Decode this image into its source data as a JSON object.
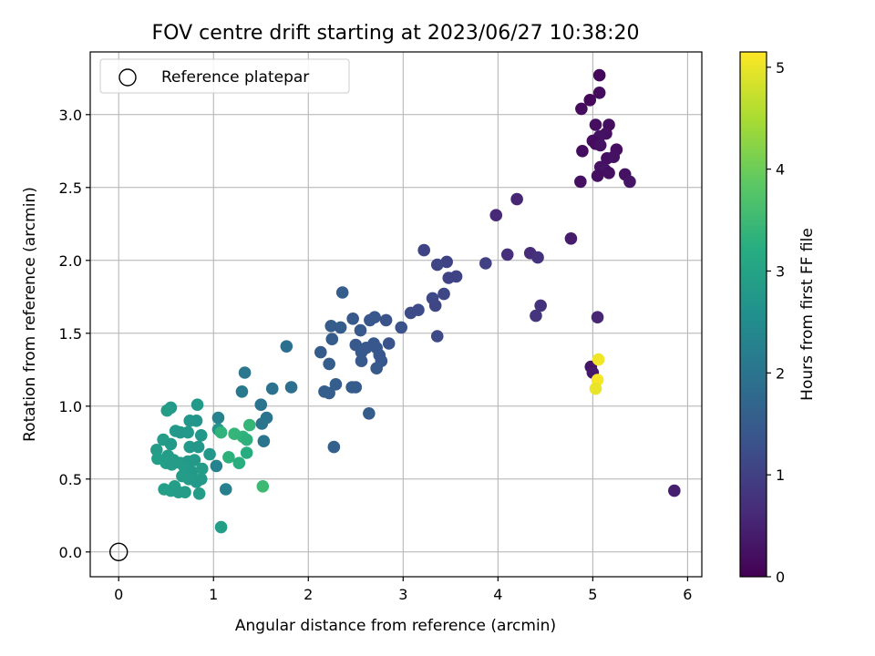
{
  "chart_data": {
    "type": "scatter",
    "title": "FOV centre drift starting at 2023/06/27 10:38:20",
    "xlabel": "Angular distance from reference (arcmin)",
    "ylabel": "Rotation from reference (arcmin)",
    "xlim": [
      -0.3,
      6.15
    ],
    "ylim": [
      -0.17,
      3.43
    ],
    "xticks": [
      0,
      1,
      2,
      3,
      4,
      5,
      6
    ],
    "yticks": [
      0.0,
      0.5,
      1.0,
      1.5,
      2.0,
      2.5,
      3.0
    ],
    "xtick_labels": [
      "0",
      "1",
      "2",
      "3",
      "4",
      "5",
      "6"
    ],
    "ytick_labels": [
      "0.0",
      "0.5",
      "1.0",
      "1.5",
      "2.0",
      "2.5",
      "3.0"
    ],
    "grid": true,
    "legend": {
      "placement": "top-left",
      "entries": [
        {
          "label": "Reference platepar",
          "marker": "open-circle"
        }
      ]
    },
    "reference_point": {
      "x": 0,
      "y": 0
    },
    "colorbar": {
      "label": "Hours from first FF file",
      "range": [
        0,
        5.15
      ],
      "ticks": [
        0,
        1,
        2,
        3,
        4,
        5
      ],
      "tick_labels": [
        "0",
        "1",
        "2",
        "3",
        "4",
        "5"
      ],
      "colormap": "viridis"
    },
    "series": [
      {
        "points": [
          {
            "x": 5.07,
            "y": 3.27,
            "c": 0.1
          },
          {
            "x": 5.07,
            "y": 3.15,
            "c": 0.15
          },
          {
            "x": 4.97,
            "y": 3.1,
            "c": 0.12
          },
          {
            "x": 4.88,
            "y": 3.04,
            "c": 0.15
          },
          {
            "x": 5.03,
            "y": 2.93,
            "c": 0.2
          },
          {
            "x": 5.17,
            "y": 2.93,
            "c": 0.18
          },
          {
            "x": 5.14,
            "y": 2.87,
            "c": 0.22
          },
          {
            "x": 5.07,
            "y": 2.85,
            "c": 0.25
          },
          {
            "x": 5.0,
            "y": 2.82,
            "c": 0.2
          },
          {
            "x": 5.03,
            "y": 2.8,
            "c": 0.15
          },
          {
            "x": 5.08,
            "y": 2.79,
            "c": 0.25
          },
          {
            "x": 4.89,
            "y": 2.75,
            "c": 0.18
          },
          {
            "x": 5.25,
            "y": 2.76,
            "c": 0.2
          },
          {
            "x": 5.15,
            "y": 2.7,
            "c": 0.22
          },
          {
            "x": 5.22,
            "y": 2.71,
            "c": 0.25
          },
          {
            "x": 5.08,
            "y": 2.64,
            "c": 0.25
          },
          {
            "x": 5.13,
            "y": 2.62,
            "c": 0.28
          },
          {
            "x": 5.17,
            "y": 2.6,
            "c": 0.22
          },
          {
            "x": 5.05,
            "y": 2.58,
            "c": 0.2
          },
          {
            "x": 5.34,
            "y": 2.59,
            "c": 0.25
          },
          {
            "x": 4.87,
            "y": 2.54,
            "c": 0.22
          },
          {
            "x": 5.39,
            "y": 2.54,
            "c": 0.3
          },
          {
            "x": 5.86,
            "y": 0.42,
            "c": 0.45
          },
          {
            "x": 3.98,
            "y": 2.31,
            "c": 0.6
          },
          {
            "x": 4.2,
            "y": 2.42,
            "c": 0.55
          },
          {
            "x": 4.77,
            "y": 2.15,
            "c": 0.4
          },
          {
            "x": 4.34,
            "y": 2.05,
            "c": 0.65
          },
          {
            "x": 4.1,
            "y": 2.04,
            "c": 0.7
          },
          {
            "x": 4.42,
            "y": 2.02,
            "c": 0.75
          },
          {
            "x": 5.05,
            "y": 1.61,
            "c": 0.55
          },
          {
            "x": 4.45,
            "y": 1.69,
            "c": 0.75
          },
          {
            "x": 4.4,
            "y": 1.62,
            "c": 0.8
          },
          {
            "x": 3.87,
            "y": 1.98,
            "c": 1.0
          },
          {
            "x": 3.22,
            "y": 2.07,
            "c": 1.05
          },
          {
            "x": 3.46,
            "y": 1.99,
            "c": 1.05
          },
          {
            "x": 3.36,
            "y": 1.97,
            "c": 1.1
          },
          {
            "x": 3.48,
            "y": 1.88,
            "c": 1.05
          },
          {
            "x": 3.56,
            "y": 1.89,
            "c": 1.05
          },
          {
            "x": 3.43,
            "y": 1.77,
            "c": 1.1
          },
          {
            "x": 3.31,
            "y": 1.74,
            "c": 1.15
          },
          {
            "x": 3.34,
            "y": 1.69,
            "c": 1.1
          },
          {
            "x": 3.16,
            "y": 1.66,
            "c": 1.2
          },
          {
            "x": 3.08,
            "y": 1.64,
            "c": 1.2
          },
          {
            "x": 3.36,
            "y": 1.48,
            "c": 1.15
          },
          {
            "x": 2.36,
            "y": 1.78,
            "c": 1.55
          },
          {
            "x": 2.98,
            "y": 1.54,
            "c": 1.3
          },
          {
            "x": 2.7,
            "y": 1.61,
            "c": 1.4
          },
          {
            "x": 2.65,
            "y": 1.59,
            "c": 1.4
          },
          {
            "x": 2.82,
            "y": 1.59,
            "c": 1.35
          },
          {
            "x": 2.47,
            "y": 1.6,
            "c": 1.45
          },
          {
            "x": 2.24,
            "y": 1.55,
            "c": 1.5
          },
          {
            "x": 2.34,
            "y": 1.54,
            "c": 1.5
          },
          {
            "x": 2.55,
            "y": 1.52,
            "c": 1.45
          },
          {
            "x": 2.25,
            "y": 1.46,
            "c": 1.5
          },
          {
            "x": 2.5,
            "y": 1.42,
            "c": 1.45
          },
          {
            "x": 2.61,
            "y": 1.4,
            "c": 1.45
          },
          {
            "x": 2.72,
            "y": 1.4,
            "c": 1.4
          },
          {
            "x": 2.56,
            "y": 1.37,
            "c": 1.45
          },
          {
            "x": 2.69,
            "y": 1.43,
            "c": 1.4
          },
          {
            "x": 2.85,
            "y": 1.43,
            "c": 1.35
          },
          {
            "x": 2.13,
            "y": 1.37,
            "c": 1.5
          },
          {
            "x": 2.75,
            "y": 1.35,
            "c": 1.4
          },
          {
            "x": 2.77,
            "y": 1.31,
            "c": 1.4
          },
          {
            "x": 2.56,
            "y": 1.31,
            "c": 1.45
          },
          {
            "x": 2.22,
            "y": 1.29,
            "c": 1.55
          },
          {
            "x": 2.72,
            "y": 1.26,
            "c": 1.45
          },
          {
            "x": 2.29,
            "y": 1.15,
            "c": 1.55
          },
          {
            "x": 2.46,
            "y": 1.13,
            "c": 1.5
          },
          {
            "x": 2.5,
            "y": 1.13,
            "c": 1.5
          },
          {
            "x": 2.17,
            "y": 1.1,
            "c": 1.55
          },
          {
            "x": 2.22,
            "y": 1.09,
            "c": 1.55
          },
          {
            "x": 2.64,
            "y": 0.95,
            "c": 1.5
          },
          {
            "x": 2.27,
            "y": 0.72,
            "c": 1.6
          },
          {
            "x": 1.77,
            "y": 1.41,
            "c": 1.9
          },
          {
            "x": 1.82,
            "y": 1.13,
            "c": 1.9
          },
          {
            "x": 1.62,
            "y": 1.12,
            "c": 1.95
          },
          {
            "x": 1.33,
            "y": 1.23,
            "c": 2.05
          },
          {
            "x": 1.3,
            "y": 1.1,
            "c": 2.1
          },
          {
            "x": 1.5,
            "y": 1.01,
            "c": 2.0
          },
          {
            "x": 1.56,
            "y": 0.92,
            "c": 2.0
          },
          {
            "x": 1.51,
            "y": 0.88,
            "c": 2.0
          },
          {
            "x": 1.53,
            "y": 0.76,
            "c": 2.0
          },
          {
            "x": 1.05,
            "y": 0.92,
            "c": 2.3
          },
          {
            "x": 1.03,
            "y": 0.59,
            "c": 2.3
          },
          {
            "x": 1.13,
            "y": 0.43,
            "c": 2.25
          },
          {
            "x": 0.55,
            "y": 0.99,
            "c": 2.8
          },
          {
            "x": 0.51,
            "y": 0.97,
            "c": 2.85
          },
          {
            "x": 0.83,
            "y": 1.01,
            "c": 2.8
          },
          {
            "x": 0.75,
            "y": 0.9,
            "c": 2.75
          },
          {
            "x": 0.82,
            "y": 0.9,
            "c": 2.7
          },
          {
            "x": 0.6,
            "y": 0.83,
            "c": 2.8
          },
          {
            "x": 0.65,
            "y": 0.82,
            "c": 2.75
          },
          {
            "x": 0.73,
            "y": 0.82,
            "c": 2.8
          },
          {
            "x": 0.47,
            "y": 0.77,
            "c": 2.85
          },
          {
            "x": 0.55,
            "y": 0.74,
            "c": 2.8
          },
          {
            "x": 0.4,
            "y": 0.7,
            "c": 2.85
          },
          {
            "x": 0.75,
            "y": 0.72,
            "c": 2.8
          },
          {
            "x": 0.84,
            "y": 0.72,
            "c": 2.75
          },
          {
            "x": 0.87,
            "y": 0.8,
            "c": 2.75
          },
          {
            "x": 1.05,
            "y": 0.84,
            "c": 2.7
          },
          {
            "x": 1.08,
            "y": 0.82,
            "c": 3.35
          },
          {
            "x": 0.52,
            "y": 0.66,
            "c": 2.85
          },
          {
            "x": 0.41,
            "y": 0.64,
            "c": 2.9
          },
          {
            "x": 0.58,
            "y": 0.63,
            "c": 2.85
          },
          {
            "x": 0.65,
            "y": 0.61,
            "c": 2.85
          },
          {
            "x": 0.5,
            "y": 0.61,
            "c": 2.9
          },
          {
            "x": 0.56,
            "y": 0.6,
            "c": 2.85
          },
          {
            "x": 0.73,
            "y": 0.62,
            "c": 2.8
          },
          {
            "x": 0.8,
            "y": 0.63,
            "c": 2.8
          },
          {
            "x": 0.96,
            "y": 0.67,
            "c": 2.75
          },
          {
            "x": 0.7,
            "y": 0.57,
            "c": 2.85
          },
          {
            "x": 0.77,
            "y": 0.55,
            "c": 2.8
          },
          {
            "x": 0.67,
            "y": 0.52,
            "c": 2.85
          },
          {
            "x": 0.74,
            "y": 0.5,
            "c": 2.85
          },
          {
            "x": 0.82,
            "y": 0.48,
            "c": 2.8
          },
          {
            "x": 0.87,
            "y": 0.5,
            "c": 2.8
          },
          {
            "x": 0.88,
            "y": 0.57,
            "c": 2.85
          },
          {
            "x": 0.59,
            "y": 0.45,
            "c": 2.9
          },
          {
            "x": 0.48,
            "y": 0.43,
            "c": 2.9
          },
          {
            "x": 0.55,
            "y": 0.42,
            "c": 2.9
          },
          {
            "x": 0.63,
            "y": 0.41,
            "c": 2.85
          },
          {
            "x": 0.7,
            "y": 0.41,
            "c": 2.85
          },
          {
            "x": 0.85,
            "y": 0.4,
            "c": 2.85
          },
          {
            "x": 1.08,
            "y": 0.17,
            "c": 2.9
          },
          {
            "x": 1.22,
            "y": 0.81,
            "c": 3.4
          },
          {
            "x": 1.31,
            "y": 0.79,
            "c": 3.35
          },
          {
            "x": 1.35,
            "y": 0.77,
            "c": 3.3
          },
          {
            "x": 1.38,
            "y": 0.87,
            "c": 3.4
          },
          {
            "x": 1.35,
            "y": 0.68,
            "c": 3.2
          },
          {
            "x": 1.16,
            "y": 0.65,
            "c": 3.3
          },
          {
            "x": 1.27,
            "y": 0.61,
            "c": 3.25
          },
          {
            "x": 1.52,
            "y": 0.45,
            "c": 3.5
          },
          {
            "x": 4.98,
            "y": 1.27,
            "c": 0.3
          },
          {
            "x": 5.0,
            "y": 1.23,
            "c": 0.35
          },
          {
            "x": 5.06,
            "y": 1.32,
            "c": 5.05
          },
          {
            "x": 5.05,
            "y": 1.18,
            "c": 5.1
          },
          {
            "x": 5.03,
            "y": 1.12,
            "c": 5.0
          }
        ]
      }
    ]
  }
}
